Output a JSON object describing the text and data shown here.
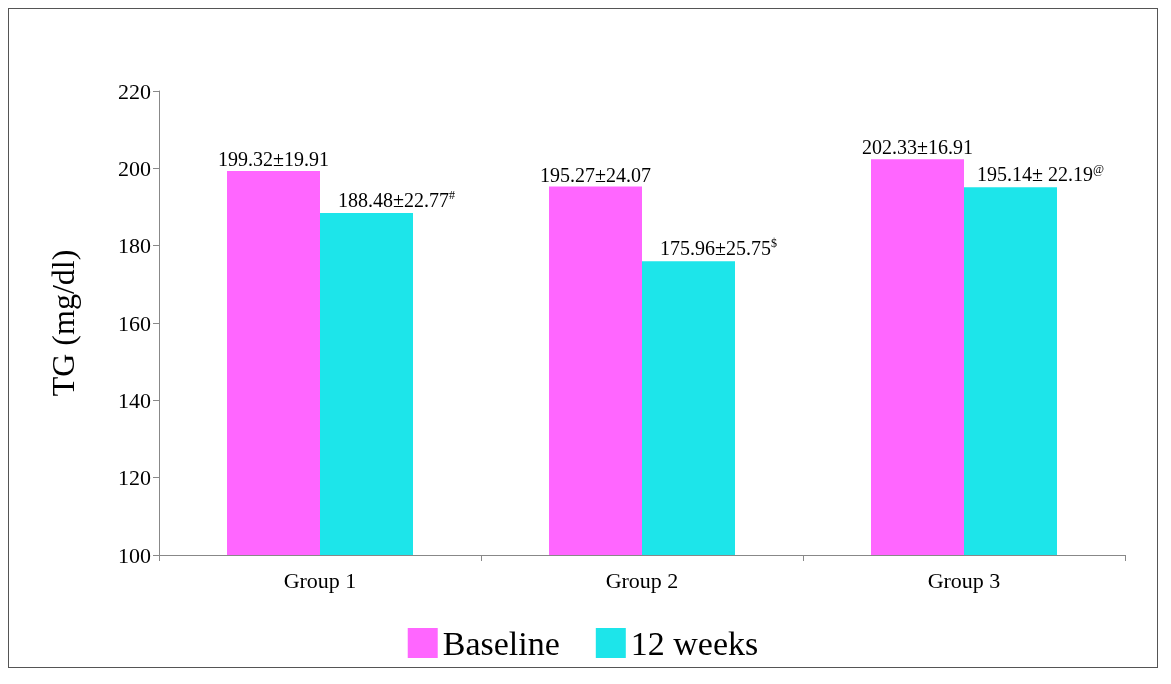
{
  "chart_data": {
    "type": "bar",
    "ylabel": "TG (mg/dl)",
    "categories": [
      "Group 1",
      "Group 2",
      "Group 3"
    ],
    "series": [
      {
        "name": "Baseline",
        "color": "#ff66ff",
        "values": [
          199.32,
          195.27,
          202.33
        ],
        "value_labels": [
          "199.32±19.91",
          "195.27±24.07",
          "202.33±16.91"
        ]
      },
      {
        "name": "12 weeks",
        "color": "#1de5ea",
        "values": [
          188.48,
          175.96,
          195.14
        ],
        "value_labels": [
          "188.48±22.77$^{#}$",
          "175.96±25.75$^{$}$",
          "195.14± 22.19$^{@}$"
        ]
      }
    ],
    "ylim": [
      100,
      220
    ],
    "yticks": [
      100,
      120,
      140,
      160,
      180,
      200,
      220
    ],
    "grid": false,
    "legend": "bottom"
  }
}
